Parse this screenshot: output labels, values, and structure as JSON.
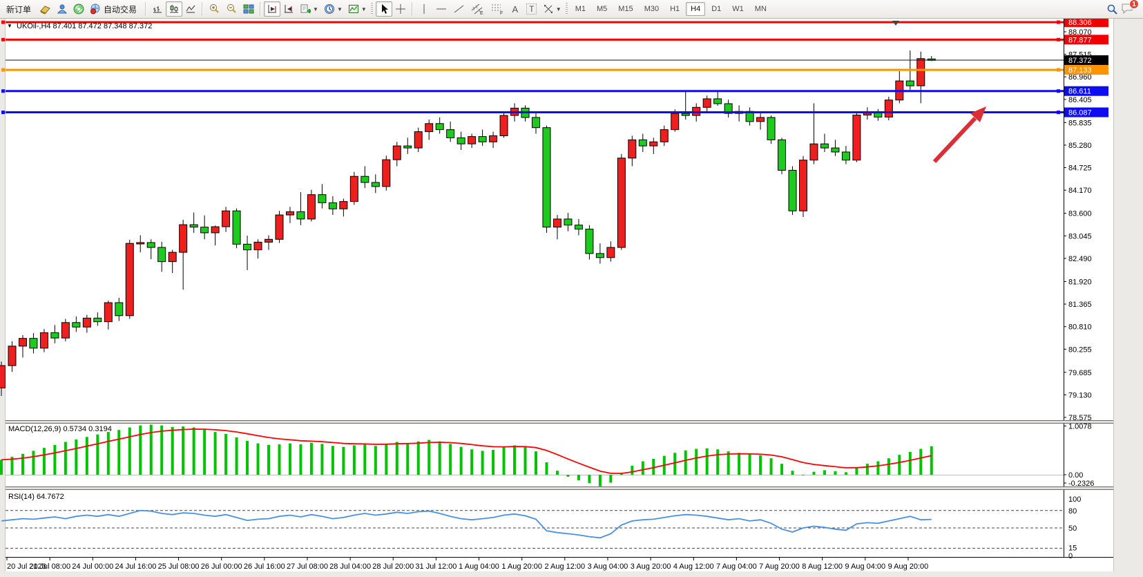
{
  "toolbar": {
    "new_order_label": "新订单",
    "autotrade_label": "自动交易",
    "text_tool_a": "A",
    "text_tool_t": "T",
    "channel_tag": "E",
    "fibo_tag": "F",
    "timeframes": [
      "M1",
      "M5",
      "M15",
      "M30",
      "H1",
      "H4",
      "D1",
      "W1",
      "MN"
    ],
    "active_timeframe": "H4",
    "notification_count": "1"
  },
  "chart": {
    "symbol_label": "UKOil-,H4",
    "ohlc_label": "87.401 87.472 87.348 87.372",
    "current_price": "87.372",
    "price_axis": [
      "88.070",
      "87.515",
      "86.960",
      "86.405",
      "85.835",
      "85.280",
      "84.725",
      "84.170",
      "83.600",
      "83.045",
      "82.490",
      "81.920",
      "81.365",
      "80.810",
      "80.255",
      "79.685",
      "79.130",
      "78.575"
    ],
    "hlines": [
      {
        "price": 88.306,
        "label": "88.306",
        "color": "#f20000"
      },
      {
        "price": 87.877,
        "label": "87.877",
        "color": "#f20000"
      },
      {
        "price": 87.133,
        "label": "87.133",
        "color": "#ff9400"
      },
      {
        "price": 86.611,
        "label": "86.611",
        "color": "#0d0df0"
      },
      {
        "price": 86.087,
        "label": "86.087",
        "color": "#0d0df0"
      }
    ],
    "date_axis": [
      "20 Jul 2023",
      "21 Jul 08:00",
      "24 Jul 00:00",
      "24 Jul 16:00",
      "25 Jul 08:00",
      "26 Jul 00:00",
      "26 Jul 16:00",
      "27 Jul 08:00",
      "28 Jul 04:00",
      "28 Jul 20:00",
      "31 Jul 12:00",
      "1 Aug 04:00",
      "1 Aug 20:00",
      "2 Aug 12:00",
      "3 Aug 04:00",
      "3 Aug 20:00",
      "4 Aug 12:00",
      "7 Aug 04:00",
      "7 Aug 20:00",
      "8 Aug 12:00",
      "9 Aug 04:00",
      "9 Aug 20:00"
    ]
  },
  "macd_panel": {
    "label": "MACD(12,26,9) 0.5734 0.3194",
    "axis": [
      "1.0078",
      "0.00",
      "-0.2326"
    ]
  },
  "rsi_panel": {
    "label": "RSI(14) 64.7672",
    "axis": [
      "100",
      "80",
      "50",
      "15",
      "0"
    ],
    "levels": [
      80,
      50,
      15
    ]
  },
  "theme": {
    "bull": "#ee1f1f",
    "bear": "#1fca1f",
    "macd_hist": "#00c400",
    "macd_signal": "#ff0000",
    "rsi_line": "#4a90e2",
    "arrow": "#d software"
  },
  "chart_data": [
    {
      "type": "candlestick",
      "title": "UKOil- H4",
      "x_labels": [
        "20 Jul 2023",
        "21 Jul 08:00",
        "24 Jul 00:00",
        "24 Jul 16:00",
        "25 Jul 08:00",
        "26 Jul 00:00",
        "26 Jul 16:00",
        "27 Jul 08:00",
        "28 Jul 04:00",
        "28 Jul 20:00",
        "31 Jul 12:00",
        "1 Aug 04:00",
        "1 Aug 20:00",
        "2 Aug 12:00",
        "3 Aug 04:00",
        "3 Aug 20:00",
        "4 Aug 12:00",
        "7 Aug 04:00",
        "7 Aug 20:00",
        "8 Aug 12:00",
        "9 Aug 04:00",
        "9 Aug 20:00"
      ],
      "ylim": [
        78.575,
        88.376
      ],
      "bull_color_means": "up",
      "candles": [
        [
          79.3,
          79.95,
          79.1,
          79.85
        ],
        [
          79.85,
          80.45,
          79.7,
          80.33
        ],
        [
          80.33,
          80.6,
          80.05,
          80.52
        ],
        [
          80.52,
          80.65,
          80.15,
          80.28
        ],
        [
          80.28,
          80.75,
          80.18,
          80.66
        ],
        [
          80.66,
          80.85,
          80.4,
          80.53
        ],
        [
          80.53,
          81.0,
          80.45,
          80.91
        ],
        [
          80.91,
          81.06,
          80.68,
          80.8
        ],
        [
          80.8,
          81.1,
          80.66,
          81.02
        ],
        [
          81.02,
          81.16,
          80.83,
          80.93
        ],
        [
          80.93,
          81.45,
          80.74,
          81.4
        ],
        [
          81.4,
          81.52,
          80.95,
          81.08
        ],
        [
          81.08,
          82.95,
          81.0,
          82.86
        ],
        [
          82.86,
          83.06,
          82.64,
          82.88
        ],
        [
          82.88,
          82.96,
          82.47,
          82.76
        ],
        [
          82.76,
          82.9,
          82.16,
          82.41
        ],
        [
          82.41,
          82.7,
          82.13,
          82.64
        ],
        [
          82.64,
          83.44,
          81.72,
          83.32
        ],
        [
          83.32,
          83.62,
          83.12,
          83.26
        ],
        [
          83.26,
          83.55,
          82.96,
          83.12
        ],
        [
          83.12,
          83.3,
          82.81,
          83.27
        ],
        [
          83.27,
          83.76,
          83.14,
          83.66
        ],
        [
          83.66,
          83.72,
          82.74,
          82.84
        ],
        [
          82.84,
          83.05,
          82.2,
          82.7
        ],
        [
          82.7,
          82.96,
          82.49,
          82.89
        ],
        [
          82.89,
          83.06,
          82.7,
          82.96
        ],
        [
          82.96,
          83.66,
          82.87,
          83.56
        ],
        [
          83.56,
          83.76,
          83.36,
          83.64
        ],
        [
          83.64,
          84.12,
          83.31,
          83.46
        ],
        [
          83.46,
          84.18,
          83.4,
          84.06
        ],
        [
          84.06,
          84.32,
          83.72,
          83.86
        ],
        [
          83.86,
          84.02,
          83.56,
          83.71
        ],
        [
          83.71,
          83.96,
          83.52,
          83.89
        ],
        [
          83.89,
          84.62,
          83.81,
          84.51
        ],
        [
          84.51,
          84.76,
          84.22,
          84.36
        ],
        [
          84.36,
          84.56,
          84.1,
          84.26
        ],
        [
          84.26,
          85.02,
          84.16,
          84.92
        ],
        [
          84.92,
          85.36,
          84.76,
          85.26
        ],
        [
          85.26,
          85.46,
          85.06,
          85.21
        ],
        [
          85.21,
          85.71,
          85.11,
          85.61
        ],
        [
          85.61,
          85.91,
          85.41,
          85.81
        ],
        [
          85.81,
          85.96,
          85.56,
          85.66
        ],
        [
          85.66,
          85.86,
          85.36,
          85.46
        ],
        [
          85.46,
          85.61,
          85.16,
          85.31
        ],
        [
          85.31,
          85.56,
          85.21,
          85.49
        ],
        [
          85.49,
          85.66,
          85.26,
          85.36
        ],
        [
          85.36,
          85.61,
          85.21,
          85.51
        ],
        [
          85.51,
          86.11,
          85.46,
          86.01
        ],
        [
          86.01,
          86.31,
          85.86,
          86.19
        ],
        [
          86.19,
          86.26,
          85.86,
          85.96
        ],
        [
          85.96,
          86.06,
          85.56,
          85.71
        ],
        [
          85.71,
          85.76,
          83.12,
          83.26
        ],
        [
          83.26,
          83.56,
          82.96,
          83.46
        ],
        [
          83.46,
          83.61,
          83.16,
          83.31
        ],
        [
          83.31,
          83.46,
          83.06,
          83.21
        ],
        [
          83.21,
          83.31,
          82.46,
          82.61
        ],
        [
          82.61,
          82.86,
          82.36,
          82.51
        ],
        [
          82.51,
          82.91,
          82.41,
          82.76
        ],
        [
          82.76,
          85.06,
          82.7,
          84.96
        ],
        [
          84.96,
          85.51,
          84.76,
          85.41
        ],
        [
          85.41,
          85.56,
          85.11,
          85.26
        ],
        [
          85.26,
          85.46,
          85.06,
          85.36
        ],
        [
          85.36,
          85.76,
          85.26,
          85.66
        ],
        [
          85.66,
          86.16,
          85.61,
          86.06
        ],
        [
          86.06,
          86.6,
          85.91,
          86.01
        ],
        [
          86.01,
          86.31,
          85.86,
          86.21
        ],
        [
          86.21,
          86.5,
          86.1,
          86.42
        ],
        [
          86.42,
          86.62,
          86.25,
          86.3
        ],
        [
          86.3,
          86.4,
          85.96,
          86.06
        ],
        [
          86.06,
          86.26,
          85.86,
          86.11
        ],
        [
          86.11,
          86.21,
          85.76,
          85.86
        ],
        [
          85.86,
          86.06,
          85.66,
          85.96
        ],
        [
          85.96,
          86.01,
          85.31,
          85.41
        ],
        [
          85.41,
          85.46,
          84.56,
          84.66
        ],
        [
          84.66,
          84.76,
          83.56,
          83.66
        ],
        [
          83.66,
          85.01,
          83.51,
          84.91
        ],
        [
          84.91,
          86.31,
          84.81,
          85.31
        ],
        [
          85.31,
          85.56,
          85.11,
          85.21
        ],
        [
          85.21,
          85.41,
          85.01,
          85.11
        ],
        [
          85.11,
          85.26,
          84.81,
          84.91
        ],
        [
          84.91,
          86.11,
          84.86,
          86.02
        ],
        [
          86.02,
          86.21,
          85.91,
          86.07
        ],
        [
          86.07,
          86.17,
          85.88,
          85.97
        ],
        [
          85.97,
          86.47,
          85.89,
          86.39
        ],
        [
          86.39,
          87.1,
          86.31,
          86.86
        ],
        [
          86.86,
          87.61,
          86.64,
          86.74
        ],
        [
          86.74,
          87.58,
          86.31,
          87.41
        ],
        [
          87.401,
          87.472,
          87.348,
          87.372
        ]
      ],
      "horizontal_lines": [
        88.306,
        87.877,
        87.133,
        86.611,
        86.087
      ],
      "bid_line": 87.372,
      "annotation": "red up-right arrow pointing at 86.087 support line"
    },
    {
      "type": "bar",
      "name": "MACD(12,26,9)",
      "current_values": [
        0.5734,
        0.3194
      ],
      "ylim": [
        -0.2326,
        1.0078
      ],
      "values": [
        0.3,
        0.36,
        0.42,
        0.48,
        0.54,
        0.6,
        0.66,
        0.71,
        0.76,
        0.81,
        0.86,
        0.9,
        0.95,
        0.99,
        1.0078,
        0.99,
        0.96,
        0.97,
        0.95,
        0.91,
        0.86,
        0.82,
        0.75,
        0.68,
        0.63,
        0.6,
        0.61,
        0.63,
        0.61,
        0.64,
        0.62,
        0.58,
        0.56,
        0.59,
        0.61,
        0.58,
        0.62,
        0.66,
        0.64,
        0.67,
        0.7,
        0.67,
        0.62,
        0.56,
        0.51,
        0.48,
        0.5,
        0.55,
        0.59,
        0.56,
        0.47,
        0.25,
        0.08,
        -0.04,
        -0.11,
        -0.17,
        -0.2326,
        -0.16,
        0.02,
        0.18,
        0.27,
        0.32,
        0.38,
        0.44,
        0.49,
        0.52,
        0.53,
        0.51,
        0.47,
        0.44,
        0.41,
        0.39,
        0.33,
        0.22,
        0.08,
        0.0,
        0.06,
        0.09,
        0.07,
        0.05,
        0.15,
        0.22,
        0.27,
        0.33,
        0.4,
        0.46,
        0.52,
        0.5734
      ],
      "signal_method": "ema9 of values (red line), ends at 0.3194"
    },
    {
      "type": "line",
      "name": "RSI(14)",
      "current_value": 64.7672,
      "ylim": [
        0,
        100
      ],
      "levels": [
        80,
        50,
        15
      ],
      "values": [
        62,
        64,
        66,
        65,
        67,
        69,
        66,
        70,
        72,
        70,
        73,
        70,
        75,
        80,
        79,
        75,
        73,
        76,
        75,
        72,
        70,
        73,
        68,
        63,
        65,
        66,
        70,
        72,
        69,
        73,
        70,
        66,
        68,
        72,
        75,
        72,
        74,
        77,
        75,
        78,
        79,
        75,
        70,
        66,
        64,
        66,
        68,
        72,
        74,
        71,
        65,
        45,
        42,
        40,
        38,
        35,
        33,
        40,
        55,
        62,
        64,
        65,
        68,
        71,
        73,
        72,
        70,
        67,
        64,
        66,
        62,
        64,
        58,
        48,
        43,
        50,
        53,
        51,
        48,
        46,
        57,
        59,
        58,
        62,
        66,
        70,
        64,
        64.7672
      ]
    }
  ]
}
